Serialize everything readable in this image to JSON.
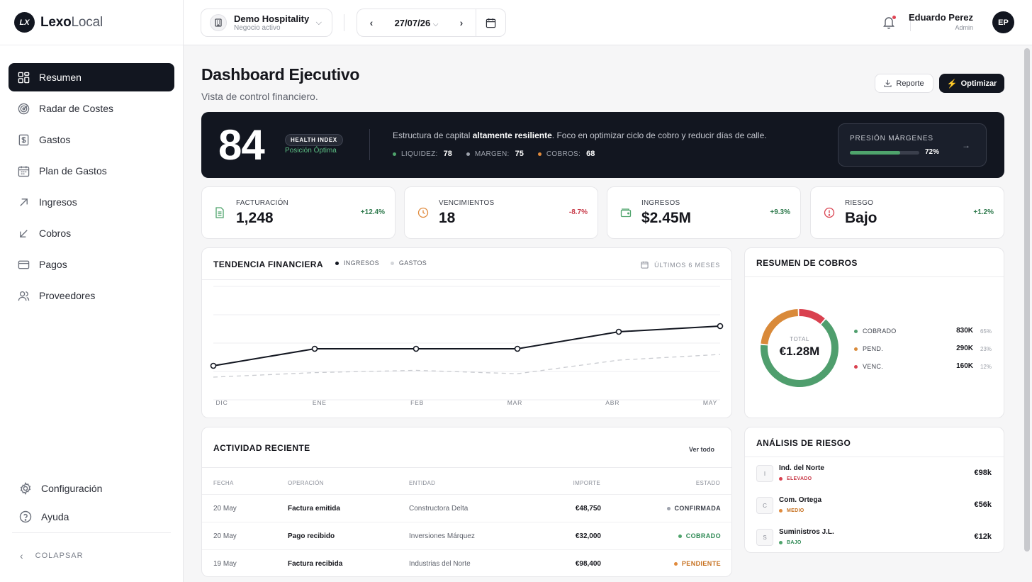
{
  "brand": {
    "name_bold": "Lexo",
    "name_light": "Local",
    "logo_initials": "LX"
  },
  "sidebar": {
    "items": [
      {
        "label": "Resumen",
        "icon": "grid-icon"
      },
      {
        "label": "Radar de Costes",
        "icon": "radar-icon"
      },
      {
        "label": "Gastos",
        "icon": "receipt-icon"
      },
      {
        "label": "Plan de Gastos",
        "icon": "calendar-icon"
      },
      {
        "label": "Ingresos",
        "icon": "arrow-up-right-icon"
      },
      {
        "label": "Cobros",
        "icon": "arrow-down-left-icon"
      },
      {
        "label": "Pagos",
        "icon": "card-icon"
      },
      {
        "label": "Proveedores",
        "icon": "users-icon"
      }
    ],
    "footer": {
      "settings": "Configuración",
      "help": "Ayuda",
      "collapse": "COLAPSAR"
    }
  },
  "topbar": {
    "company": {
      "name": "Demo Hospitality",
      "status": "Negocio activo"
    },
    "date": "27/07/26",
    "user": {
      "name": "Eduardo Perez",
      "role": "Admin",
      "initials": "EP"
    }
  },
  "page": {
    "title": "Dashboard Ejecutivo",
    "subtitle": "Vista de control financiero.",
    "report_button": "Reporte",
    "optimize_button": "Optimizar"
  },
  "health": {
    "score": "84",
    "badge": "HEALTH INDEX",
    "status": "Posición Óptima",
    "desc_pre": "Estructura de capital ",
    "desc_bold": "altamente resiliente",
    "desc_post": ". Foco en optimizar ciclo de cobro y reducir días de calle.",
    "metrics": [
      {
        "label": "LIQUIDEZ:",
        "value": "78",
        "color": "#4fa46c"
      },
      {
        "label": "MARGEN:",
        "value": "75",
        "color": "#9ea3ad"
      },
      {
        "label": "COBROS:",
        "value": "68",
        "color": "#e08a3c"
      }
    ],
    "pressure": {
      "label": "PRESIÓN MÁRGENES",
      "value": "72%",
      "fraction": 0.72
    }
  },
  "kpis": [
    {
      "label": "FACTURACIÓN",
      "value": "1,248",
      "delta": "+12.4%",
      "delta_color": "#2f7a4d",
      "icon": "document-icon",
      "icon_color": "#4fa46c"
    },
    {
      "label": "VENCIMIENTOS",
      "value": "18",
      "delta": "-8.7%",
      "delta_color": "#c83a48",
      "icon": "clock-icon",
      "icon_color": "#e08a3c"
    },
    {
      "label": "INGRESOS",
      "value": "$2.45M",
      "delta": "+9.3%",
      "delta_color": "#2f7a4d",
      "icon": "wallet-icon",
      "icon_color": "#4fa46c"
    },
    {
      "label": "RIESGO",
      "value": "Bajo",
      "delta": "+1.2%",
      "delta_color": "#2f7a4d",
      "icon": "alert-icon",
      "icon_color": "#d9414f"
    }
  ],
  "trend": {
    "title": "TENDENCIA FINANCIERA",
    "legend": [
      "INGRESOS",
      "GASTOS"
    ],
    "range": "ÚLTIMOS 6 MESES"
  },
  "chart_data": {
    "type": "line",
    "categories": [
      "DIC",
      "ENE",
      "FEB",
      "MAR",
      "ABR",
      "MAY"
    ],
    "series": [
      {
        "name": "INGRESOS",
        "values": [
          30,
          45,
          45,
          45,
          60,
          65
        ],
        "color": "#121620"
      },
      {
        "name": "GASTOS",
        "values": [
          20,
          24,
          26,
          23,
          35,
          40
        ],
        "color": "#c9cbd0"
      }
    ],
    "ylim": [
      0,
      100
    ],
    "grid": true
  },
  "cobros": {
    "title": "RESUMEN DE COBROS",
    "total_label": "TOTAL",
    "total_value": "€1.28M",
    "items": [
      {
        "label": "COBRADO",
        "value": "830K",
        "pct": "65%",
        "share": 65,
        "color": "#4f9e6d"
      },
      {
        "label": "PEND.",
        "value": "290K",
        "pct": "23%",
        "share": 23,
        "color": "#d98a3a"
      },
      {
        "label": "VENC.",
        "value": "160K",
        "pct": "12%",
        "share": 12,
        "color": "#d9414f"
      }
    ]
  },
  "activity": {
    "title": "ACTIVIDAD RECIENTE",
    "view_all": "Ver todo",
    "headers": [
      "FECHA",
      "OPERACIÓN",
      "ENTIDAD",
      "IMPORTE",
      "ESTADO"
    ],
    "rows": [
      {
        "date": "20 May",
        "op": "Factura emitida",
        "entity": "Constructora Delta",
        "amount": "€48,750",
        "status": "CONFIRMADA",
        "status_color": "#3e424c",
        "dot": "#9ea3ad"
      },
      {
        "date": "20 May",
        "op": "Pago recibido",
        "entity": "Inversiones Márquez",
        "amount": "€32,000",
        "status": "COBRADO",
        "status_color": "#2f8a55",
        "dot": "#4fa46c"
      },
      {
        "date": "19 May",
        "op": "Factura recibida",
        "entity": "Industrias del Norte",
        "amount": "€98,400",
        "status": "PENDIENTE",
        "status_color": "#c6701f",
        "dot": "#e08a3c"
      }
    ]
  },
  "risk": {
    "title": "ANÁLISIS DE RIESGO",
    "items": [
      {
        "initial": "I",
        "name": "Ind. del Norte",
        "level": "ELEVADO",
        "level_color": "#c83a48",
        "amount": "€98k"
      },
      {
        "initial": "C",
        "name": "Com. Ortega",
        "level": "MEDIO",
        "level_color": "#c6701f",
        "amount": "€56k"
      },
      {
        "initial": "S",
        "name": "Suministros J.L.",
        "level": "BAJO",
        "level_color": "#2f8a55",
        "amount": "€12k"
      }
    ]
  }
}
